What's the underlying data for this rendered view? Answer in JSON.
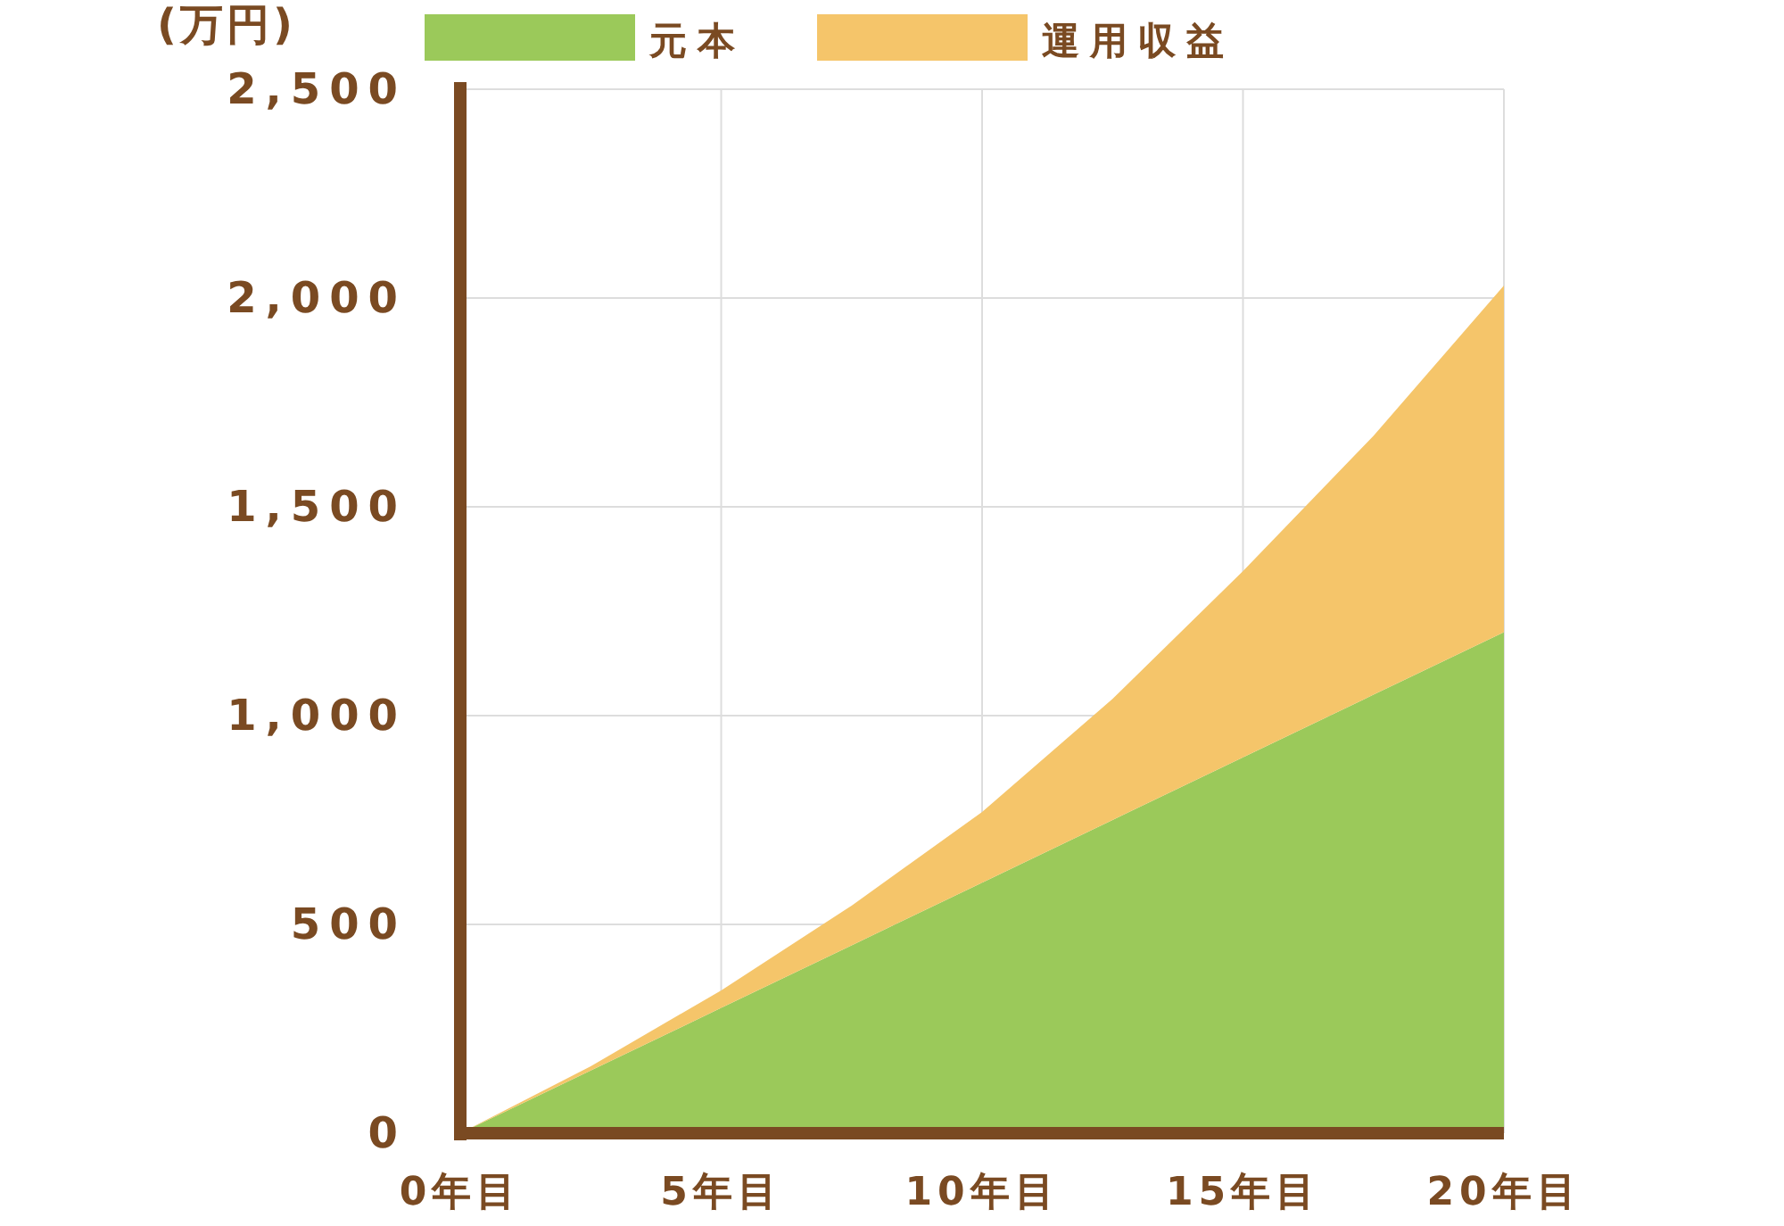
{
  "chart_data": {
    "type": "area",
    "stacked": true,
    "ylabel": "(万円)",
    "x": [
      0,
      2.5,
      5,
      7.5,
      10,
      12.5,
      15,
      17.5,
      20
    ],
    "series": [
      {
        "name": "元本",
        "color": "#9bc95a",
        "values": [
          0,
          150,
          300,
          450,
          600,
          750,
          900,
          1050,
          1200
        ]
      },
      {
        "name": "運用収益",
        "color": "#f5c56a",
        "values": [
          0,
          10,
          42,
          95,
          169,
          290,
          446,
          620,
          830
        ]
      }
    ],
    "xlim": [
      0,
      20
    ],
    "xticks": [
      {
        "value": 0,
        "label": "0年目"
      },
      {
        "value": 5,
        "label": "5年目"
      },
      {
        "value": 10,
        "label": "10年目"
      },
      {
        "value": 15,
        "label": "15年目"
      },
      {
        "value": 20,
        "label": "20年目"
      }
    ],
    "ylim": [
      0,
      2500
    ],
    "yticks": [
      0,
      500,
      {
        "value": 1000,
        "label": "1,000"
      },
      {
        "value": 1500,
        "label": "1,500"
      },
      {
        "value": 2000,
        "label": "2,000"
      },
      {
        "value": 2500,
        "label": "2,500"
      }
    ],
    "grid": true,
    "legend": "top"
  }
}
